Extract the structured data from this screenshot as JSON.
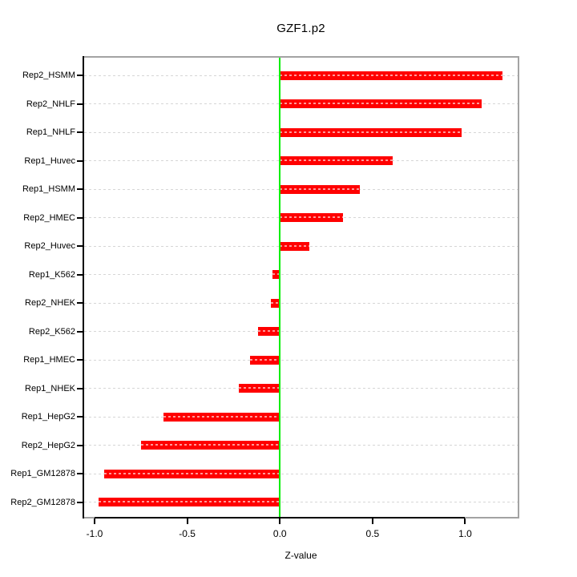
{
  "title": "GZF1.p2",
  "chart_data": {
    "type": "bar",
    "orientation": "horizontal",
    "title": "GZF1.p2",
    "xlabel": "Z-value",
    "categories_order": "top-to-bottom",
    "categories": [
      "Rep2_HSMM",
      "Rep2_NHLF",
      "Rep1_NHLF",
      "Rep1_Huvec",
      "Rep1_HSMM",
      "Rep2_HMEC",
      "Rep2_Huvec",
      "Rep1_K562",
      "Rep2_NHEK",
      "Rep2_K562",
      "Rep1_HMEC",
      "Rep1_NHEK",
      "Rep1_HepG2",
      "Rep2_HepG2",
      "Rep1_GM12878",
      "Rep2_GM12878"
    ],
    "values": [
      1.2,
      1.09,
      0.98,
      0.61,
      0.43,
      0.34,
      0.16,
      -0.04,
      -0.05,
      -0.12,
      -0.16,
      -0.22,
      -0.63,
      -0.75,
      -0.95,
      -0.98
    ],
    "xticks": [
      -1.0,
      -0.5,
      0.0,
      0.5,
      1.0
    ],
    "xtick_labels": [
      "-1.0",
      "-0.5",
      "0.0",
      "0.5",
      "1.0"
    ],
    "xlim": [
      -1.065,
      1.292
    ],
    "xtick_span": [
      -1.0,
      1.0
    ],
    "grid": "dashed-horizontal-per-category",
    "zero_reference_line": 0.0,
    "legend": "none",
    "colors": {
      "bar": "#ff0000",
      "zero_line": "#00ee00",
      "grid_line": "#d6d6d6",
      "box_border": "#a3a3a3",
      "axis": "#000000",
      "text": "#000000",
      "background": "#ffffff"
    }
  }
}
